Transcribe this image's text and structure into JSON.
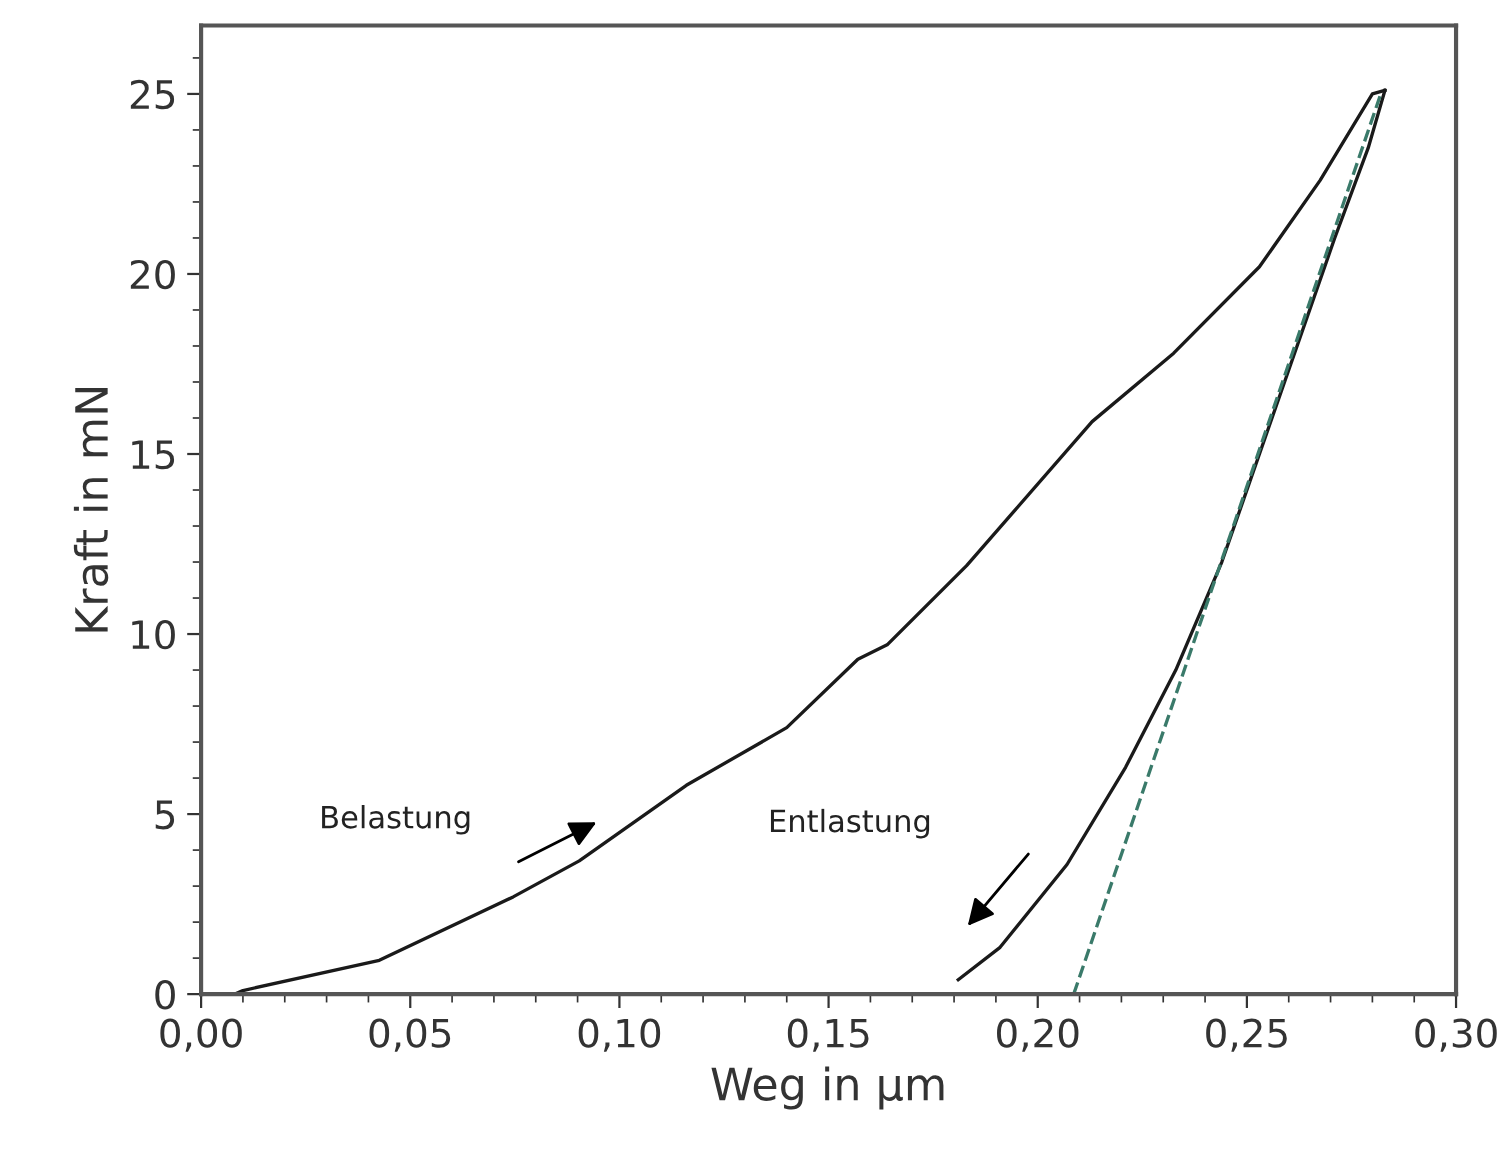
{
  "chart_data": {
    "type": "line",
    "xlabel": "Weg in µm",
    "ylabel": "Kraft in mN",
    "xlim": [
      0,
      0.3
    ],
    "ylim": [
      0,
      26.9
    ],
    "xticks": [
      {
        "value": 0,
        "label": "0,00"
      },
      {
        "value": 0.05,
        "label": "0,05"
      },
      {
        "value": 0.1,
        "label": "0,10"
      },
      {
        "value": 0.15,
        "label": "0,15"
      },
      {
        "value": 0.2,
        "label": "0,20"
      },
      {
        "value": 0.25,
        "label": "0,25"
      },
      {
        "value": 0.3,
        "label": "0,30"
      }
    ],
    "yticks": [
      0,
      5,
      10,
      15,
      20,
      25
    ],
    "grid": false,
    "legend": false,
    "marker": "none",
    "series": [
      {
        "color": "#1a1a1a",
        "line_style": "solid",
        "x": [
          0.0081,
          0.01,
          0.0426,
          0.0746,
          0.0904,
          0.116,
          0.14,
          0.157,
          0.164,
          0.183,
          0.213,
          0.2325,
          0.253,
          0.2675,
          0.28,
          0.283
        ],
        "values": [
          0,
          0.1,
          0.94,
          2.7,
          3.7,
          5.8,
          7.4,
          9.3,
          9.7,
          11.9,
          15.9,
          17.8,
          20.2,
          22.6,
          25.0,
          25.1
        ]
      },
      {
        "color": "#1a1a1a",
        "line_style": "solid",
        "x": [
          0.283,
          0.279,
          0.271,
          0.262,
          0.253,
          0.244,
          0.233,
          0.221,
          0.207,
          0.191,
          0.181
        ],
        "values": [
          25.1,
          23.5,
          21,
          18,
          15,
          12,
          9,
          6.3,
          3.6,
          1.3,
          0.4
        ]
      },
      {
        "color": "#3a7a6a",
        "line_style": "dashed",
        "x": [
          0.2086,
          0.282
        ],
        "values": [
          0,
          25
        ]
      }
    ],
    "annotations": [
      "Belastung",
      "Entlastung"
    ]
  }
}
